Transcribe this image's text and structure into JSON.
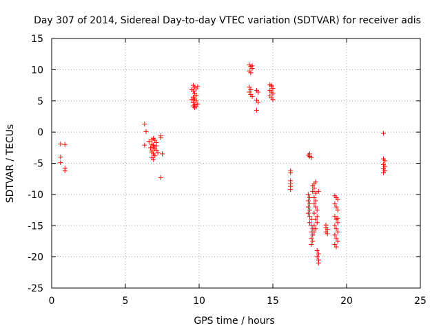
{
  "chart_data": {
    "type": "scatter",
    "title": "Day 307 of 2014, Sidereal Day-to-day VTEC variation (SDTVAR) for receiver adis",
    "xlabel": "GPS time / hours",
    "ylabel": "SDTVAR / TECUs",
    "xlim": [
      0,
      25
    ],
    "ylim": [
      -25,
      15
    ],
    "xticks": [
      0,
      5,
      10,
      15,
      20,
      25
    ],
    "yticks": [
      -25,
      -20,
      -15,
      -10,
      -5,
      0,
      5,
      10,
      15
    ],
    "grid": true,
    "marker": "+",
    "color": "#ff0000",
    "series": [
      {
        "name": "SDTVAR",
        "points": [
          [
            0.6,
            -1.9
          ],
          [
            0.9,
            -2.0
          ],
          [
            0.6,
            -4.0
          ],
          [
            0.6,
            -4.9
          ],
          [
            0.9,
            -5.8
          ],
          [
            0.9,
            -6.2
          ],
          [
            6.3,
            1.3
          ],
          [
            6.4,
            0.1
          ],
          [
            6.3,
            -2.1
          ],
          [
            6.6,
            -1.5
          ],
          [
            6.8,
            -1.2
          ],
          [
            6.9,
            -1.0
          ],
          [
            7.0,
            -1.3
          ],
          [
            6.8,
            -2.0
          ],
          [
            6.9,
            -2.4
          ],
          [
            7.0,
            -2.7
          ],
          [
            7.1,
            -2.9
          ],
          [
            6.8,
            -3.2
          ],
          [
            6.9,
            -3.5
          ],
          [
            7.0,
            -3.8
          ],
          [
            6.8,
            -4.1
          ],
          [
            6.9,
            -4.4
          ],
          [
            6.8,
            -3.0
          ],
          [
            6.7,
            -2.5
          ],
          [
            7.1,
            -2.2
          ],
          [
            7.2,
            -3.3
          ],
          [
            7.4,
            -0.6
          ],
          [
            7.4,
            -0.9
          ],
          [
            7.5,
            -3.5
          ],
          [
            7.4,
            -7.3
          ],
          [
            7.1,
            -1.7
          ],
          [
            6.9,
            -2.1
          ],
          [
            9.6,
            7.5
          ],
          [
            9.7,
            7.2
          ],
          [
            9.8,
            6.9
          ],
          [
            9.6,
            6.6
          ],
          [
            9.7,
            6.2
          ],
          [
            9.8,
            5.9
          ],
          [
            9.6,
            5.6
          ],
          [
            9.7,
            5.3
          ],
          [
            9.8,
            5.0
          ],
          [
            9.6,
            4.7
          ],
          [
            9.7,
            4.4
          ],
          [
            9.8,
            4.1
          ],
          [
            9.7,
            3.9
          ],
          [
            9.5,
            5.2
          ],
          [
            9.9,
            7.3
          ],
          [
            9.5,
            6.8
          ],
          [
            9.9,
            4.5
          ],
          [
            9.6,
            4.2
          ],
          [
            13.4,
            10.8
          ],
          [
            13.5,
            10.5
          ],
          [
            13.6,
            10.2
          ],
          [
            13.4,
            9.8
          ],
          [
            13.5,
            9.5
          ],
          [
            13.4,
            7.2
          ],
          [
            13.5,
            6.8
          ],
          [
            13.4,
            6.4
          ],
          [
            13.5,
            6.0
          ],
          [
            13.6,
            5.7
          ],
          [
            13.9,
            6.7
          ],
          [
            14.0,
            6.4
          ],
          [
            13.9,
            5.1
          ],
          [
            14.0,
            4.8
          ],
          [
            13.9,
            3.5
          ],
          [
            13.6,
            10.6
          ],
          [
            14.8,
            7.6
          ],
          [
            14.9,
            7.3
          ],
          [
            15.0,
            7.0
          ],
          [
            14.8,
            6.7
          ],
          [
            14.9,
            6.4
          ],
          [
            15.0,
            6.1
          ],
          [
            14.8,
            5.8
          ],
          [
            14.9,
            5.5
          ],
          [
            15.0,
            5.2
          ],
          [
            14.9,
            7.5
          ],
          [
            16.2,
            -6.2
          ],
          [
            16.2,
            -6.5
          ],
          [
            16.2,
            -7.8
          ],
          [
            16.2,
            -8.3
          ],
          [
            16.2,
            -8.7
          ],
          [
            16.2,
            -9.2
          ],
          [
            17.4,
            -3.7
          ],
          [
            17.5,
            -3.9
          ],
          [
            17.6,
            -4.1
          ],
          [
            17.5,
            -3.5
          ],
          [
            17.4,
            -10.0
          ],
          [
            17.5,
            -10.5
          ],
          [
            17.4,
            -11.0
          ],
          [
            17.5,
            -11.5
          ],
          [
            17.4,
            -12.0
          ],
          [
            17.5,
            -12.5
          ],
          [
            17.4,
            -13.0
          ],
          [
            17.5,
            -13.5
          ],
          [
            17.6,
            -14.0
          ],
          [
            17.5,
            -14.5
          ],
          [
            17.6,
            -15.0
          ],
          [
            17.7,
            -15.5
          ],
          [
            17.6,
            -16.0
          ],
          [
            17.7,
            -16.5
          ],
          [
            17.6,
            -17.0
          ],
          [
            17.7,
            -17.5
          ],
          [
            17.6,
            -18.0
          ],
          [
            17.7,
            -8.6
          ],
          [
            17.8,
            -8.3
          ],
          [
            17.9,
            -8.0
          ],
          [
            17.8,
            -9.0
          ],
          [
            17.7,
            -9.5
          ],
          [
            17.9,
            -9.8
          ],
          [
            17.8,
            -10.5
          ],
          [
            17.9,
            -11.0
          ],
          [
            17.8,
            -11.5
          ],
          [
            17.9,
            -12.0
          ],
          [
            17.8,
            -13.0
          ],
          [
            17.9,
            -14.0
          ],
          [
            17.8,
            -15.0
          ],
          [
            17.9,
            -15.5
          ],
          [
            17.8,
            -16.0
          ],
          [
            18.0,
            -12.5
          ],
          [
            18.0,
            -13.5
          ],
          [
            18.0,
            -14.5
          ],
          [
            18.0,
            -19.0
          ],
          [
            18.1,
            -19.5
          ],
          [
            18.0,
            -20.0
          ],
          [
            18.1,
            -20.5
          ],
          [
            18.1,
            -21.0
          ],
          [
            18.1,
            -9.5
          ],
          [
            18.6,
            -14.9
          ],
          [
            18.6,
            -15.3
          ],
          [
            18.7,
            -15.6
          ],
          [
            18.6,
            -16.0
          ],
          [
            18.7,
            -16.3
          ],
          [
            19.2,
            -10.2
          ],
          [
            19.3,
            -10.5
          ],
          [
            19.4,
            -10.8
          ],
          [
            19.2,
            -11.5
          ],
          [
            19.3,
            -12.0
          ],
          [
            19.4,
            -12.5
          ],
          [
            19.2,
            -13.5
          ],
          [
            19.3,
            -14.0
          ],
          [
            19.4,
            -14.5
          ],
          [
            19.2,
            -15.0
          ],
          [
            19.3,
            -15.5
          ],
          [
            19.4,
            -16.0
          ],
          [
            19.2,
            -16.5
          ],
          [
            19.3,
            -17.0
          ],
          [
            19.4,
            -17.5
          ],
          [
            19.2,
            -18.0
          ],
          [
            19.3,
            -18.4
          ],
          [
            19.4,
            -13.8
          ],
          [
            22.5,
            -0.2
          ],
          [
            22.5,
            -4.3
          ],
          [
            22.6,
            -4.6
          ],
          [
            22.5,
            -5.2
          ],
          [
            22.6,
            -5.5
          ],
          [
            22.5,
            -5.9
          ],
          [
            22.6,
            -6.2
          ],
          [
            22.5,
            -6.5
          ]
        ]
      }
    ]
  }
}
